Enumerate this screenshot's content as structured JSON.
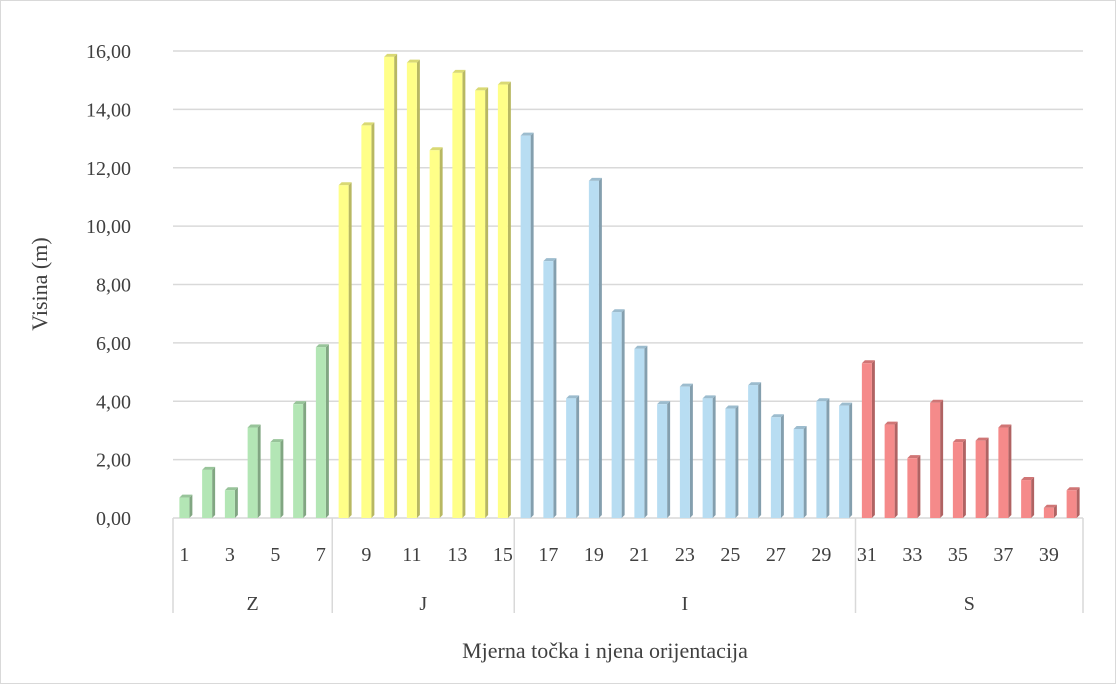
{
  "chart_data": {
    "type": "bar",
    "ylabel": "Visina (m)",
    "xlabel": "Mjerna točka i njena orijentacija",
    "ylim": [
      0,
      16
    ],
    "yticks": [
      0,
      2,
      4,
      6,
      8,
      10,
      12,
      14,
      16
    ],
    "ytick_labels": [
      "0,00",
      "2,00",
      "4,00",
      "6,00",
      "8,00",
      "10,00",
      "12,00",
      "14,00",
      "16,00"
    ],
    "grid": true,
    "categories": [
      1,
      2,
      3,
      4,
      5,
      6,
      7,
      8,
      9,
      10,
      11,
      12,
      13,
      14,
      15,
      16,
      17,
      18,
      19,
      20,
      21,
      22,
      23,
      24,
      25,
      26,
      27,
      28,
      29,
      30,
      31,
      32,
      33,
      34,
      35,
      36,
      37,
      38,
      39,
      40
    ],
    "visible_category_labels": [
      "1",
      "3",
      "5",
      "7",
      "9",
      "11",
      "13",
      "15",
      "17",
      "19",
      "21",
      "23",
      "25",
      "27",
      "29",
      "31",
      "33",
      "35",
      "37",
      "39"
    ],
    "groups": [
      {
        "name": "Z",
        "start": 1,
        "end": 7,
        "color": "#b3e6b5",
        "values": [
          0.7,
          1.65,
          0.95,
          3.1,
          2.6,
          3.9,
          5.85
        ]
      },
      {
        "name": "J",
        "start": 8,
        "end": 15,
        "color": "#ffff88",
        "values": [
          11.4,
          13.45,
          15.8,
          15.6,
          12.6,
          15.25,
          14.65,
          14.85
        ]
      },
      {
        "name": "I",
        "start": 16,
        "end": 30,
        "color": "#b8ddf2",
        "values": [
          13.1,
          8.8,
          4.1,
          11.55,
          7.05,
          5.8,
          3.9,
          4.5,
          4.1,
          3.75,
          4.55,
          3.45,
          3.05,
          4.0,
          3.85
        ]
      },
      {
        "name": "S",
        "start": 31,
        "end": 40,
        "color": "#f58a8a",
        "values": [
          5.3,
          3.2,
          2.05,
          3.95,
          2.6,
          2.65,
          3.1,
          1.3,
          0.35,
          0.95
        ]
      }
    ]
  }
}
